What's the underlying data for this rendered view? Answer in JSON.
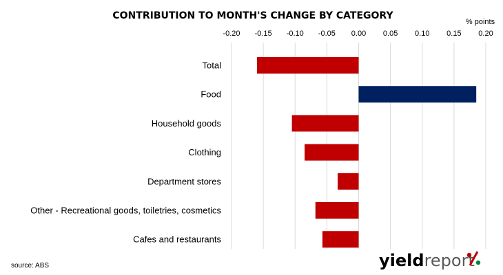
{
  "chart_data": {
    "type": "bar",
    "orientation": "horizontal",
    "title": "CONTRIBUTION TO MONTH'S CHANGE BY CATEGORY",
    "unit_label": "% points",
    "categories": [
      "Total",
      "Food",
      "Household goods",
      "Clothing",
      "Department stores",
      "Other - Recreational goods, toiletries, cosmetics",
      "Cafes and restaurants"
    ],
    "values": [
      -0.16,
      0.185,
      -0.105,
      -0.085,
      -0.033,
      -0.068,
      -0.057
    ],
    "bar_colors": [
      "#c00000",
      "#002060",
      "#c00000",
      "#c00000",
      "#c00000",
      "#c00000",
      "#c00000"
    ],
    "xlim": [
      -0.2,
      0.2
    ],
    "x_ticks": [
      -0.2,
      -0.15,
      -0.1,
      -0.05,
      0.0,
      0.05,
      0.1,
      0.15,
      0.2
    ],
    "x_tick_labels": [
      "-0.20",
      "-0.15",
      "-0.10",
      "-0.05",
      "0.00",
      "0.05",
      "0.10",
      "0.15",
      "0.20"
    ],
    "x_axis_position": "top",
    "grid": true,
    "grid_color": "#d9d9d9"
  },
  "footer": {
    "source": "source: ABS"
  },
  "logo": {
    "part1": "yield",
    "part2": "report",
    "symbol": "%",
    "color1": "#000000",
    "color2": "#595959",
    "symbol_color_top": "#c00000",
    "symbol_color_bottom": "#00843d"
  }
}
